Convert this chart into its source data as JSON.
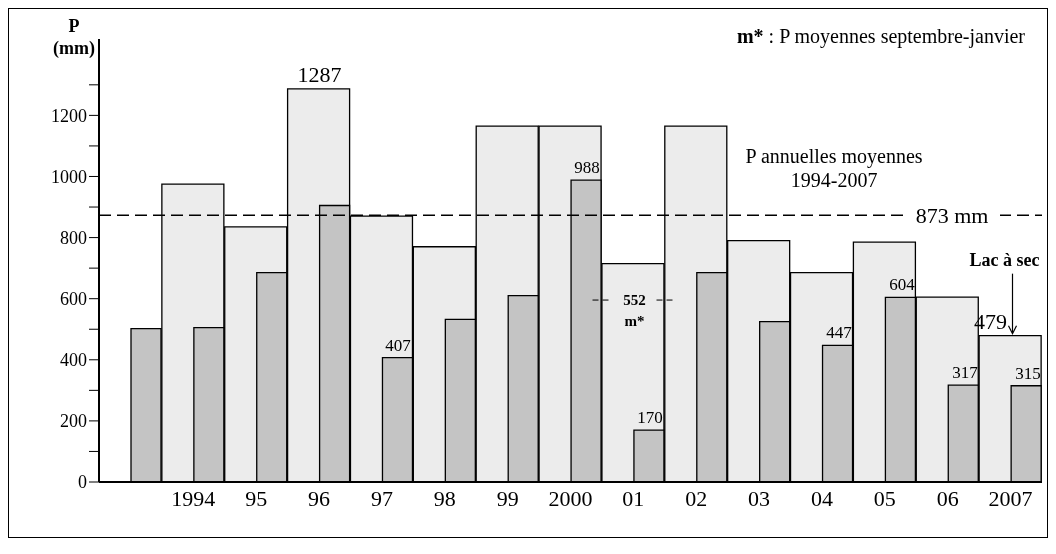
{
  "chart_data": {
    "type": "bar",
    "ylabel": "P (mm)",
    "categories": [
      null,
      "1994",
      "95",
      "96",
      "97",
      "98",
      "99",
      "2000",
      "01",
      "02",
      "03",
      "04",
      "05",
      "06",
      "2007"
    ],
    "series": [
      {
        "color": "#ececec",
        "values": [
          null,
          975,
          835,
          1287,
          870,
          770,
          1165,
          1165,
          715,
          1165,
          790,
          685,
          785,
          605,
          479
        ],
        "value_labels": [
          null,
          null,
          null,
          "1287",
          null,
          null,
          null,
          null,
          null,
          null,
          null,
          null,
          null,
          null,
          "479"
        ]
      },
      {
        "color": "#c4c4c4",
        "values": [
          502,
          505,
          685,
          905,
          407,
          532,
          610,
          988,
          170,
          685,
          525,
          447,
          604,
          317,
          315
        ],
        "value_labels": [
          null,
          null,
          null,
          null,
          "407",
          null,
          null,
          "988",
          "170",
          null,
          null,
          "447",
          "604",
          "317",
          "315"
        ]
      }
    ],
    "ylim": [
      0,
      1450
    ],
    "yticks": [
      0,
      {
        "value": 100,
        "label": null
      },
      200,
      {
        "value": 300,
        "label": null
      },
      400,
      {
        "value": 500,
        "label": null
      },
      600,
      {
        "value": 700,
        "label": null
      },
      800,
      {
        "value": 900,
        "label": null
      },
      1000,
      {
        "value": 1100,
        "label": null
      },
      1200,
      {
        "value": 1300,
        "label": null
      }
    ],
    "ref_lines": [
      {
        "axis": "y",
        "value": 873,
        "label": "873 mm",
        "line_style": "dashed",
        "color": "#000000"
      }
    ],
    "annotations": [
      "m* : P moyennes septembre-janvier",
      {
        "text": "P annuelles moyennes 1994-2007",
        "x": "03",
        "y": 873
      },
      "552 m*",
      {
        "text": "Lac à sec",
        "x": "2007",
        "y": 479
      }
    ]
  }
}
